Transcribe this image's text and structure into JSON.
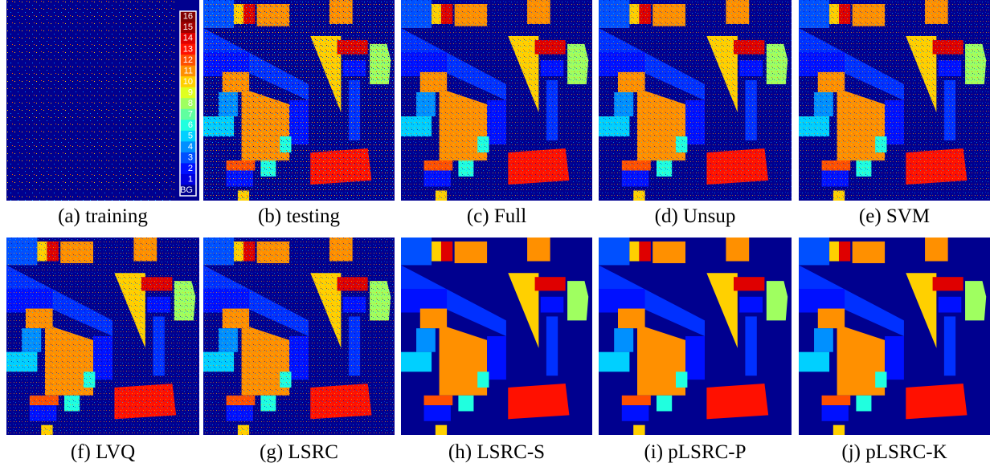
{
  "panels": [
    {
      "caption": "(a) training"
    },
    {
      "caption": "(b) testing"
    },
    {
      "caption": "(c) Full"
    },
    {
      "caption": "(d) Unsup"
    },
    {
      "caption": "(e) SVM"
    },
    {
      "caption": "(f) LVQ"
    },
    {
      "caption": "(g) LSRC"
    },
    {
      "caption": "(h) LSRC-S"
    },
    {
      "caption": "(i) pLSRC-P"
    },
    {
      "caption": "(j) pLSRC-K"
    }
  ],
  "colorbar": {
    "labels": [
      "16",
      "15",
      "14",
      "13",
      "12",
      "11",
      "10",
      "9",
      "8",
      "7",
      "6",
      "5",
      "4",
      "3",
      "2",
      "1",
      "BG"
    ]
  }
}
